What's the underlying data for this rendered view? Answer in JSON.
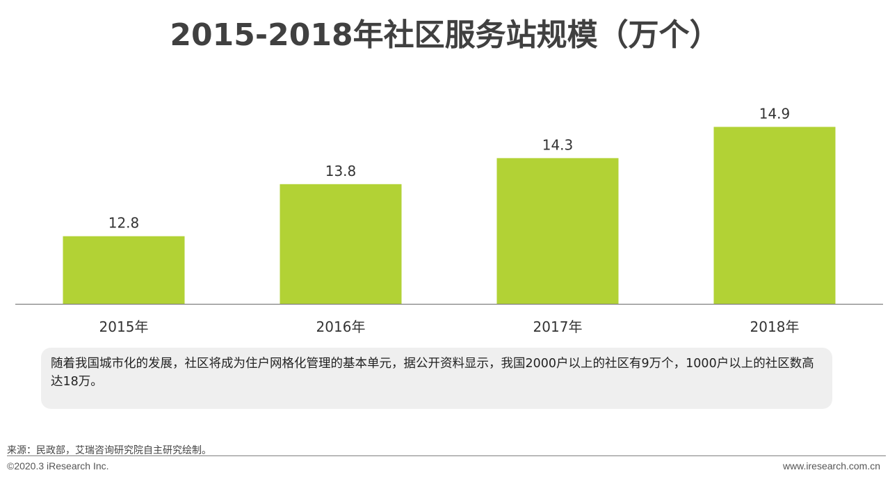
{
  "chart_data": {
    "type": "bar",
    "title": "2015-2018年社区服务站规模（万个）",
    "categories": [
      "2015年",
      "2016年",
      "2017年",
      "2018年"
    ],
    "values": [
      12.8,
      13.8,
      14.3,
      14.9
    ],
    "data_labels": [
      "12.8",
      "13.8",
      "14.3",
      "14.9"
    ],
    "bar_color": "#b2d235",
    "axis_color": "#7f7f7f",
    "grid": false,
    "legend": "none",
    "ylim": [
      11.5,
      15.2
    ]
  },
  "note": {
    "text": "随着我国城市化的发展，社区将成为住户网格化管理的基本单元，据公开资料显示，我国2000户以上的社区有9万个，1000户以上的社区数高达18万。"
  },
  "footer": {
    "source": "来源：民政部，艾瑞咨询研究院自主研究绘制。",
    "copyright": "©2020.3 iResearch Inc.",
    "website": "www.iresearch.com.cn"
  }
}
